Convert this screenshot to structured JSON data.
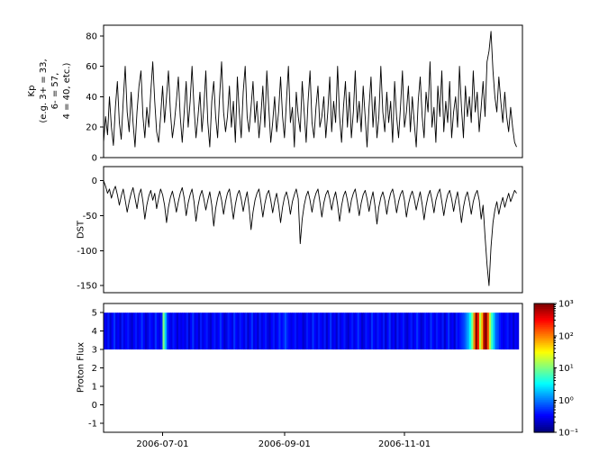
{
  "figure": {
    "background": "#ffffff",
    "frame_color": "#000000",
    "line_color": "#000000"
  },
  "labels": {
    "kp_ylabel": "Kp\n(e.g. 3+ = 33,\n6- = 57,\n4 = 40, etc.)",
    "dst_ylabel": "DST",
    "proton_ylabel": "Proton Flux"
  },
  "xaxis": {
    "range_days": [
      0,
      213
    ],
    "ticks": [
      {
        "day": 30,
        "label": "2006-07-01"
      },
      {
        "day": 92,
        "label": "2006-09-01"
      },
      {
        "day": 153,
        "label": "2006-11-01"
      }
    ]
  },
  "chart_data": [
    {
      "name": "kp",
      "type": "line",
      "ylabel": "Kp (e.g. 3+ = 33, 6- = 57, 4 = 40, etc.)",
      "ylim": [
        0,
        87
      ],
      "yticks": [
        0,
        20,
        40,
        60,
        80
      ],
      "x_unit": "days since 2006-06-01",
      "x_tick_labels": [
        "2006-07-01",
        "2006-09-01",
        "2006-11-01"
      ],
      "values": [
        10,
        27,
        15,
        40,
        20,
        8,
        33,
        50,
        23,
        12,
        37,
        60,
        30,
        17,
        43,
        23,
        7,
        30,
        47,
        57,
        27,
        13,
        33,
        20,
        43,
        63,
        37,
        17,
        10,
        27,
        47,
        23,
        40,
        57,
        30,
        13,
        23,
        37,
        53,
        27,
        10,
        30,
        50,
        20,
        37,
        60,
        33,
        13,
        27,
        43,
        17,
        33,
        57,
        23,
        7,
        37,
        50,
        27,
        13,
        40,
        63,
        30,
        17,
        27,
        47,
        20,
        37,
        10,
        53,
        30,
        13,
        43,
        60,
        27,
        17,
        33,
        50,
        23,
        37,
        13,
        27,
        47,
        20,
        57,
        33,
        10,
        23,
        40,
        17,
        30,
        53,
        27,
        13,
        37,
        60,
        23,
        33,
        7,
        43,
        27,
        17,
        50,
        30,
        10,
        37,
        57,
        23,
        13,
        33,
        47,
        20,
        27,
        40,
        13,
        30,
        53,
        17,
        37,
        23,
        60,
        27,
        10,
        33,
        50,
        20,
        43,
        13,
        30,
        57,
        23,
        37,
        17,
        47,
        27,
        7,
        33,
        53,
        20,
        40,
        13,
        27,
        60,
        30,
        17,
        43,
        23,
        37,
        10,
        50,
        27,
        13,
        33,
        57,
        20,
        30,
        47,
        17,
        40,
        23,
        7,
        37,
        53,
        27,
        13,
        43,
        30,
        63,
        20,
        33,
        10,
        47,
        27,
        57,
        17,
        37,
        23,
        50,
        13,
        30,
        40,
        20,
        60,
        33,
        13,
        47,
        27,
        40,
        23,
        57,
        30,
        43,
        17,
        33,
        50,
        27,
        63,
        70,
        83,
        57,
        40,
        30,
        53,
        37,
        23,
        43,
        27,
        17,
        33,
        20,
        10,
        7
      ]
    },
    {
      "name": "dst",
      "type": "line",
      "ylabel": "DST",
      "ylim": [
        -160,
        20
      ],
      "yticks": [
        0,
        -50,
        -100,
        -150
      ],
      "x_unit": "days since 2006-06-01",
      "values": [
        0,
        -8,
        -18,
        -12,
        -25,
        -15,
        -8,
        -20,
        -35,
        -22,
        -12,
        -28,
        -45,
        -30,
        -18,
        -10,
        -25,
        -40,
        -20,
        -12,
        -30,
        -55,
        -35,
        -22,
        -14,
        -28,
        -18,
        -40,
        -25,
        -12,
        -20,
        -35,
        -60,
        -38,
        -24,
        -15,
        -28,
        -45,
        -30,
        -18,
        -10,
        -25,
        -50,
        -32,
        -20,
        -12,
        -30,
        -58,
        -36,
        -22,
        -14,
        -26,
        -42,
        -28,
        -16,
        -35,
        -65,
        -40,
        -25,
        -15,
        -28,
        -48,
        -30,
        -18,
        -12,
        -32,
        -55,
        -34,
        -20,
        -14,
        -26,
        -44,
        -28,
        -16,
        -38,
        -70,
        -45,
        -28,
        -18,
        -12,
        -30,
        -52,
        -33,
        -20,
        -14,
        -28,
        -46,
        -30,
        -18,
        -35,
        -60,
        -38,
        -24,
        -16,
        -28,
        -48,
        -30,
        -20,
        -12,
        -26,
        -90,
        -55,
        -35,
        -22,
        -15,
        -28,
        -45,
        -28,
        -18,
        -12,
        -30,
        -52,
        -32,
        -20,
        -14,
        -26,
        -42,
        -26,
        -16,
        -34,
        -58,
        -36,
        -22,
        -15,
        -28,
        -46,
        -28,
        -18,
        -12,
        -30,
        -50,
        -32,
        -20,
        -14,
        -26,
        -44,
        -28,
        -16,
        -36,
        -62,
        -38,
        -24,
        -16,
        -28,
        -48,
        -30,
        -18,
        -12,
        -26,
        -46,
        -30,
        -20,
        -14,
        -28,
        -52,
        -34,
        -22,
        -15,
        -26,
        -42,
        -28,
        -16,
        -34,
        -56,
        -36,
        -22,
        -14,
        -28,
        -46,
        -28,
        -18,
        -12,
        -30,
        -50,
        -32,
        -20,
        -14,
        -26,
        -44,
        -28,
        -16,
        -36,
        -60,
        -38,
        -24,
        -16,
        -30,
        -48,
        -30,
        -20,
        -14,
        -28,
        -55,
        -35,
        -80,
        -120,
        -150,
        -95,
        -60,
        -42,
        -30,
        -48,
        -34,
        -24,
        -38,
        -28,
        -18,
        -30,
        -22,
        -14,
        -18
      ]
    },
    {
      "name": "proton_flux",
      "type": "heatmap",
      "ylabel": "Proton Flux",
      "ylim": [
        -1.5,
        5.5
      ],
      "yticks": [
        -1,
        0,
        1,
        2,
        3,
        4,
        5
      ],
      "band_y": [
        3,
        5
      ],
      "colorbar": {
        "vmin_log10": -1,
        "vmax_log10": 3,
        "tick_labels": [
          "10³",
          "10²",
          "10¹",
          "10⁰",
          "10⁻¹"
        ],
        "tick_values": [
          3,
          2,
          1,
          0,
          -1
        ],
        "colormap": "jet",
        "colormap_stops": [
          "#000080",
          "#0000ff",
          "#00ffff",
          "#ffff00",
          "#ff0000",
          "#800000"
        ]
      },
      "log10_values": [
        -0.5,
        -0.6,
        -0.4,
        -0.7,
        -0.5,
        -0.3,
        -0.6,
        -0.5,
        -0.7,
        -0.4,
        -0.6,
        -0.5,
        -0.4,
        -0.6,
        -0.7,
        -0.5,
        -0.4,
        -0.6,
        -0.5,
        -0.3,
        -0.5,
        -0.7,
        -0.6,
        -0.4,
        -0.5,
        -0.6,
        -0.3,
        -0.5,
        -0.6,
        -0.4,
        1.0,
        0.3,
        -0.3,
        -0.5,
        -0.6,
        -0.4,
        -0.5,
        -0.7,
        -0.5,
        -0.6,
        -0.5,
        -0.6,
        -0.4,
        -0.7,
        -0.5,
        -0.3,
        -0.6,
        -0.5,
        -0.7,
        -0.4,
        -0.6,
        -0.5,
        -0.4,
        -0.6,
        -0.7,
        -0.5,
        -0.4,
        -0.6,
        -0.5,
        -0.3,
        -0.5,
        -0.7,
        -0.6,
        -0.4,
        -0.5,
        -0.6,
        -0.3,
        -0.5,
        -0.6,
        -0.4,
        -0.5,
        -0.6,
        -0.4,
        -0.7,
        -0.5,
        -0.3,
        -0.6,
        -0.5,
        -0.7,
        -0.4,
        -0.6,
        -0.5,
        -0.4,
        -0.6,
        -0.7,
        -0.5,
        -0.4,
        -0.6,
        -0.5,
        -0.3,
        -0.5,
        -0.4,
        -0.2,
        -0.4,
        -0.5,
        -0.6,
        -0.5,
        -0.4,
        -0.6,
        -0.5,
        -0.5,
        -0.7,
        -0.6,
        -0.4,
        -0.5,
        -0.6,
        -0.3,
        -0.5,
        -0.6,
        -0.4,
        -0.5,
        -0.6,
        -0.4,
        -0.7,
        -0.5,
        -0.3,
        -0.6,
        -0.5,
        -0.7,
        -0.4,
        -0.6,
        -0.5,
        -0.4,
        -0.6,
        -0.7,
        -0.5,
        -0.4,
        -0.6,
        -0.5,
        -0.3,
        -0.5,
        -0.7,
        -0.6,
        -0.4,
        -0.5,
        -0.6,
        -0.3,
        -0.5,
        -0.6,
        -0.4,
        -0.5,
        -0.6,
        -0.4,
        -0.7,
        -0.5,
        -0.3,
        -0.6,
        -0.5,
        -0.7,
        -0.4,
        -0.6,
        -0.5,
        -0.4,
        -0.6,
        -0.7,
        -0.5,
        -0.4,
        -0.6,
        -0.5,
        -0.3,
        -0.5,
        -0.7,
        -0.6,
        -0.4,
        -0.5,
        -0.6,
        -0.3,
        -0.5,
        -0.6,
        -0.4,
        -0.5,
        -0.6,
        -0.4,
        -0.7,
        -0.5,
        -0.3,
        -0.6,
        -0.5,
        -0.7,
        -0.4,
        -0.5,
        -0.4,
        -0.3,
        -0.2,
        0.0,
        0.2,
        0.5,
        1.0,
        2.0,
        3.0,
        2.4,
        1.2,
        1.8,
        2.8,
        3.0,
        2.2,
        1.2,
        0.7,
        0.3,
        -0.1,
        -0.2,
        -0.4,
        -0.5,
        -0.6,
        -0.5,
        -0.4,
        -0.6,
        -0.5,
        -0.7,
        -0.5,
        -0.6
      ]
    }
  ]
}
